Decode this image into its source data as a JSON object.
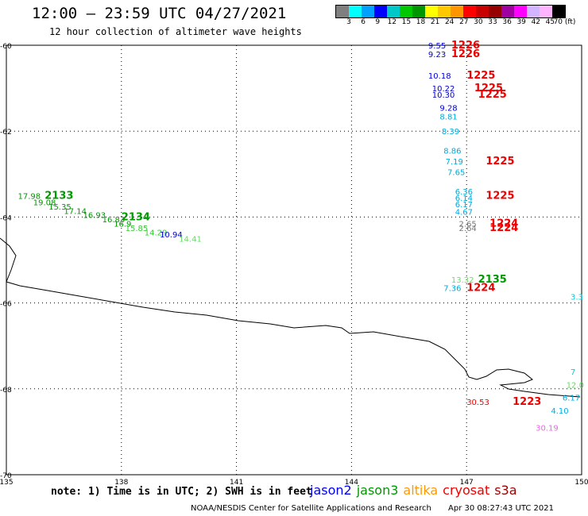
{
  "header": {
    "title": "12:00 – 23:59 UTC 04/27/2021",
    "subtitle": "12 hour collection of altimeter wave heights"
  },
  "colorbar": {
    "colors": [
      "#7f7f7f",
      "#00ffff",
      "#00a0ff",
      "#0000ff",
      "#00c8c8",
      "#00c800",
      "#009600",
      "#ffff00",
      "#ffc800",
      "#ff9600",
      "#ff0000",
      "#c80000",
      "#960000",
      "#a000a0",
      "#ff00ff",
      "#d2b4ff",
      "#ffb4ff",
      "#000000"
    ],
    "labels": [
      "3",
      "6",
      "9",
      "12",
      "15",
      "18",
      "21",
      "24",
      "27",
      "30",
      "33",
      "36",
      "39",
      "42",
      "45",
      "70 (ft)"
    ]
  },
  "axes": {
    "y_ticks": [
      "-60",
      "-62",
      "-64",
      "-66",
      "-68",
      "-70"
    ],
    "x_ticks": [
      "135",
      "138",
      "141",
      "144",
      "147",
      "150"
    ]
  },
  "observations": [
    {
      "text": "9.55",
      "color": "#0000cc",
      "lon": 146.0,
      "lat": -60.0
    },
    {
      "text": "9.23",
      "color": "#0000cc",
      "lon": 146.0,
      "lat": -60.2
    },
    {
      "text": "1226",
      "color": "#ee0000",
      "lon": 146.6,
      "lat": -60.0,
      "bold": true
    },
    {
      "text": "1226",
      "color": "#ee0000",
      "lon": 146.6,
      "lat": -60.2,
      "bold": true
    },
    {
      "text": "10.18",
      "color": "#0000cc",
      "lon": 146.0,
      "lat": -60.7
    },
    {
      "text": "1225",
      "color": "#ee0000",
      "lon": 147.0,
      "lat": -60.7,
      "bold": true
    },
    {
      "text": "10.22",
      "color": "#0000cc",
      "lon": 146.1,
      "lat": -61.0
    },
    {
      "text": "1225",
      "color": "#ee0000",
      "lon": 147.2,
      "lat": -61.0,
      "bold": true
    },
    {
      "text": "10.30",
      "color": "#0000cc",
      "lon": 146.1,
      "lat": -61.15
    },
    {
      "text": "1225",
      "color": "#ee0000",
      "lon": 147.3,
      "lat": -61.15,
      "bold": true
    },
    {
      "text": "9.28",
      "color": "#0000cc",
      "lon": 146.3,
      "lat": -61.45
    },
    {
      "text": "8.81",
      "color": "#00aadd",
      "lon": 146.3,
      "lat": -61.65
    },
    {
      "text": "8.39",
      "color": "#00aadd",
      "lon": 146.35,
      "lat": -62.0
    },
    {
      "text": "8.86",
      "color": "#00aadd",
      "lon": 146.4,
      "lat": -62.45
    },
    {
      "text": "7.19",
      "color": "#00aadd",
      "lon": 146.45,
      "lat": -62.7
    },
    {
      "text": "1225",
      "color": "#ee0000",
      "lon": 147.5,
      "lat": -62.7,
      "bold": true
    },
    {
      "text": "7.65",
      "color": "#00aadd",
      "lon": 146.5,
      "lat": -62.95
    },
    {
      "text": "6.36",
      "color": "#00aadd",
      "lon": 146.7,
      "lat": -63.4
    },
    {
      "text": "6.14",
      "color": "#00aadd",
      "lon": 146.7,
      "lat": -63.55
    },
    {
      "text": "6.17",
      "color": "#00aadd",
      "lon": 146.7,
      "lat": -63.7
    },
    {
      "text": "4.67",
      "color": "#00aadd",
      "lon": 146.7,
      "lat": -63.87
    },
    {
      "text": "1225",
      "color": "#ee0000",
      "lon": 147.5,
      "lat": -63.5,
      "bold": true
    },
    {
      "text": "2.65",
      "color": "#777777",
      "lon": 146.8,
      "lat": -64.15
    },
    {
      "text": "2.64",
      "color": "#777777",
      "lon": 146.8,
      "lat": -64.25
    },
    {
      "text": "1224",
      "color": "#ee0000",
      "lon": 147.6,
      "lat": -64.15,
      "bold": true
    },
    {
      "text": "1224",
      "color": "#ee0000",
      "lon": 147.6,
      "lat": -64.25,
      "bold": true
    },
    {
      "text": "17.98",
      "color": "#009900",
      "lon": 135.3,
      "lat": -63.5
    },
    {
      "text": "2133",
      "color": "#009900",
      "lon": 136.0,
      "lat": -63.5,
      "bold": true
    },
    {
      "text": "19.08",
      "color": "#009900",
      "lon": 135.7,
      "lat": -63.65
    },
    {
      "text": "15.35",
      "color": "#009900",
      "lon": 136.1,
      "lat": -63.75
    },
    {
      "text": "17.14",
      "color": "#009900",
      "lon": 136.5,
      "lat": -63.85
    },
    {
      "text": "16.93",
      "color": "#009900",
      "lon": 137.0,
      "lat": -63.95
    },
    {
      "text": "16.83",
      "color": "#009900",
      "lon": 137.5,
      "lat": -64.05
    },
    {
      "text": "2134",
      "color": "#009900",
      "lon": 138.0,
      "lat": -64.0,
      "bold": true
    },
    {
      "text": "16.9",
      "color": "#009900",
      "lon": 137.8,
      "lat": -64.15
    },
    {
      "text": "15.85",
      "color": "#33cc33",
      "lon": 138.1,
      "lat": -64.25
    },
    {
      "text": "14.29",
      "color": "#33cc33",
      "lon": 138.6,
      "lat": -64.35
    },
    {
      "text": "10.94",
      "color": "#0000cc",
      "lon": 139.0,
      "lat": -64.4
    },
    {
      "text": "14.41",
      "color": "#66dd66",
      "lon": 139.5,
      "lat": -64.5
    },
    {
      "text": "13.32",
      "color": "#66dd66",
      "lon": 146.6,
      "lat": -65.45
    },
    {
      "text": "2135",
      "color": "#009900",
      "lon": 147.3,
      "lat": -65.45,
      "bold": true
    },
    {
      "text": "7.36",
      "color": "#00aadd",
      "lon": 146.4,
      "lat": -65.65
    },
    {
      "text": "1224",
      "color": "#ee0000",
      "lon": 147.0,
      "lat": -65.65,
      "bold": true
    },
    {
      "text": "3.3",
      "color": "#00ccdd",
      "lon": 149.8,
      "lat": -65.85
    },
    {
      "text": "7",
      "color": "#00ccdd",
      "lon": 149.9,
      "lat": -67.6
    },
    {
      "text": "12.0",
      "color": "#66dd66",
      "lon": 149.6,
      "lat": -67.9
    },
    {
      "text": "6.17",
      "color": "#00aadd",
      "lon": 149.5,
      "lat": -68.2
    },
    {
      "text": "4.10",
      "color": "#00aadd",
      "lon": 149.2,
      "lat": -68.5
    },
    {
      "text": "30.53",
      "color": "#ee0000",
      "lon": 147.0,
      "lat": -68.3
    },
    {
      "text": "1223",
      "color": "#ee0000",
      "lon": 148.2,
      "lat": -68.3,
      "bold": true
    },
    {
      "text": "30.19",
      "color": "#ee66ee",
      "lon": 148.8,
      "lat": -68.9
    }
  ],
  "note": "note: 1) Time is in UTC; 2) SWH is in feet",
  "legend": [
    {
      "label": "jason2",
      "color": "#0000ee"
    },
    {
      "label": "jason3",
      "color": "#009900"
    },
    {
      "label": "altika",
      "color": "#ff9900"
    },
    {
      "label": "cryosat",
      "color": "#ee0000"
    },
    {
      "label": "s3a",
      "color": "#990000"
    }
  ],
  "footer": {
    "org": "NOAA/NESDIS Center for Satellite Applications and Research",
    "timestamp": "Apr 30 08:27:43 UTC 2021"
  }
}
